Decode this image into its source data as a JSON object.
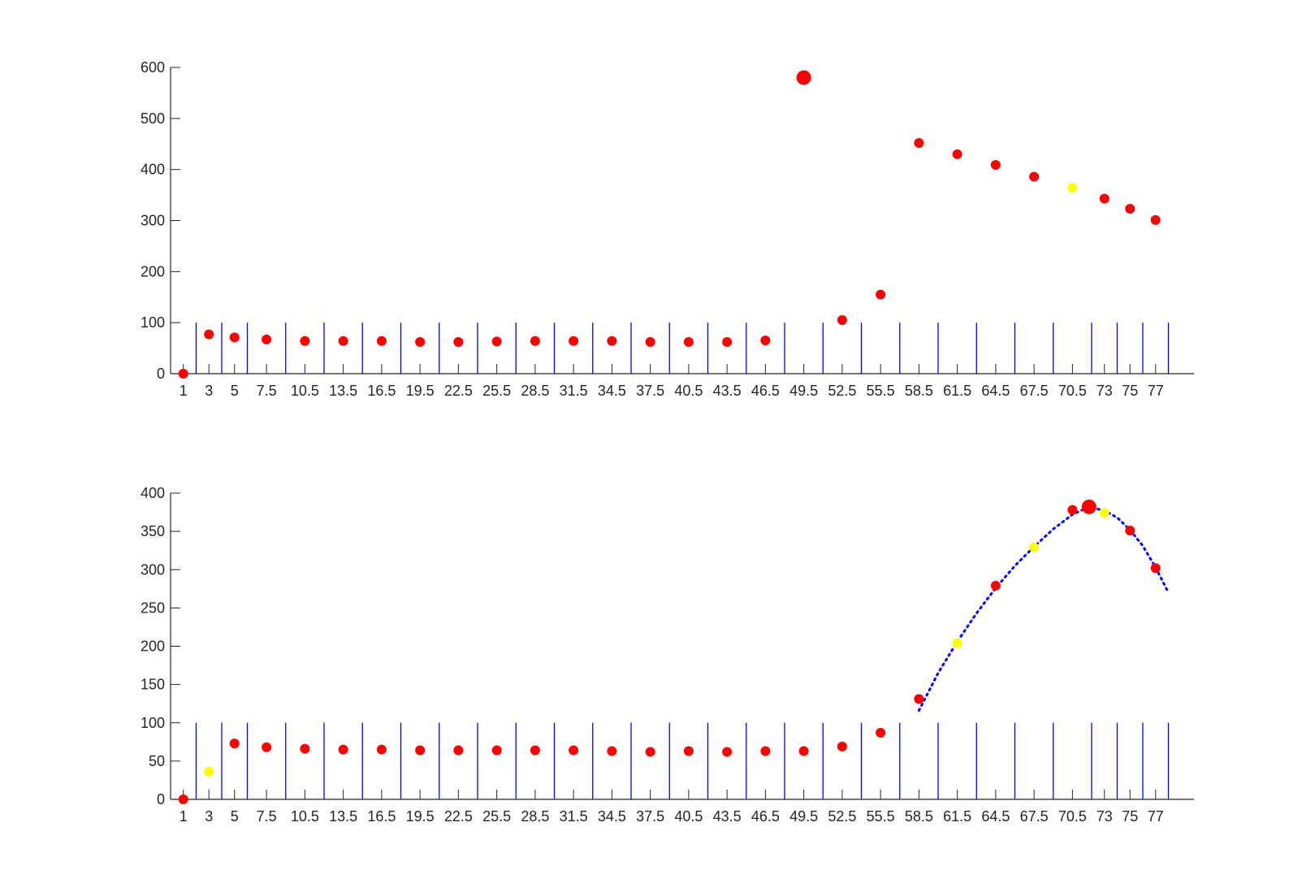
{
  "chart_data": [
    {
      "type": "scatter",
      "ylim": [
        0,
        600
      ],
      "yticks": [
        0,
        100,
        200,
        300,
        400,
        500,
        600
      ],
      "x_tick_labels": [
        "1",
        "3",
        "5",
        "7.5",
        "10.5",
        "13.5",
        "16.5",
        "19.5",
        "22.5",
        "25.5",
        "28.5",
        "31.5",
        "34.5",
        "37.5",
        "40.5",
        "43.5",
        "46.5",
        "49.5",
        "52.5",
        "55.5",
        "58.5",
        "61.5",
        "64.5",
        "67.5",
        "70.5",
        "73",
        "75",
        "77"
      ],
      "bin_edges": [
        2,
        4,
        6,
        9,
        12,
        15,
        18,
        21,
        24,
        27,
        30,
        33,
        36,
        39,
        42,
        45,
        48,
        51,
        54,
        57,
        60,
        63,
        66,
        69,
        72,
        74,
        76,
        78
      ],
      "bin_line_height": 100,
      "points": [
        {
          "x": 1,
          "y": 0,
          "color": "red"
        },
        {
          "x": 3,
          "y": 77,
          "color": "red"
        },
        {
          "x": 5,
          "y": 71,
          "color": "red"
        },
        {
          "x": 7.5,
          "y": 67,
          "color": "red"
        },
        {
          "x": 10.5,
          "y": 64,
          "color": "red"
        },
        {
          "x": 13.5,
          "y": 64,
          "color": "red"
        },
        {
          "x": 16.5,
          "y": 64,
          "color": "red"
        },
        {
          "x": 19.5,
          "y": 62,
          "color": "red"
        },
        {
          "x": 22.5,
          "y": 62,
          "color": "red"
        },
        {
          "x": 25.5,
          "y": 63,
          "color": "red"
        },
        {
          "x": 28.5,
          "y": 64,
          "color": "red"
        },
        {
          "x": 31.5,
          "y": 64,
          "color": "red"
        },
        {
          "x": 34.5,
          "y": 64,
          "color": "red"
        },
        {
          "x": 37.5,
          "y": 62,
          "color": "red"
        },
        {
          "x": 40.5,
          "y": 62,
          "color": "red"
        },
        {
          "x": 43.5,
          "y": 62,
          "color": "red"
        },
        {
          "x": 46.5,
          "y": 65,
          "color": "red"
        },
        {
          "x": 49.5,
          "y": 580,
          "color": "red",
          "highlight": true
        },
        {
          "x": 52.5,
          "y": 105,
          "color": "red"
        },
        {
          "x": 55.5,
          "y": 155,
          "color": "red"
        },
        {
          "x": 58.5,
          "y": 452,
          "color": "red"
        },
        {
          "x": 61.5,
          "y": 430,
          "color": "red"
        },
        {
          "x": 64.5,
          "y": 409,
          "color": "red"
        },
        {
          "x": 67.5,
          "y": 386,
          "color": "red"
        },
        {
          "x": 70.5,
          "y": 364,
          "color": "yellow"
        },
        {
          "x": 73,
          "y": 343,
          "color": "red"
        },
        {
          "x": 75,
          "y": 323,
          "color": "red"
        },
        {
          "x": 77,
          "y": 301,
          "color": "red"
        }
      ]
    },
    {
      "type": "scatter",
      "ylim": [
        0,
        400
      ],
      "yticks": [
        0,
        50,
        100,
        150,
        200,
        250,
        300,
        350,
        400
      ],
      "x_tick_labels": [
        "1",
        "3",
        "5",
        "7.5",
        "10.5",
        "13.5",
        "16.5",
        "19.5",
        "22.5",
        "25.5",
        "28.5",
        "31.5",
        "34.5",
        "37.5",
        "40.5",
        "43.5",
        "46.5",
        "49.5",
        "52.5",
        "55.5",
        "58.5",
        "61.5",
        "64.5",
        "67.5",
        "70.5",
        "73",
        "75",
        "77"
      ],
      "bin_edges": [
        2,
        4,
        6,
        9,
        12,
        15,
        18,
        21,
        24,
        27,
        30,
        33,
        36,
        39,
        42,
        45,
        48,
        51,
        54,
        57,
        60,
        63,
        66,
        69,
        72,
        74,
        76,
        78
      ],
      "bin_line_height": 100,
      "points": [
        {
          "x": 1,
          "y": 0,
          "color": "red"
        },
        {
          "x": 3,
          "y": 36,
          "color": "yellow"
        },
        {
          "x": 5,
          "y": 73,
          "color": "red"
        },
        {
          "x": 7.5,
          "y": 68,
          "color": "red"
        },
        {
          "x": 10.5,
          "y": 66,
          "color": "red"
        },
        {
          "x": 13.5,
          "y": 65,
          "color": "red"
        },
        {
          "x": 16.5,
          "y": 65,
          "color": "red"
        },
        {
          "x": 19.5,
          "y": 64,
          "color": "red"
        },
        {
          "x": 22.5,
          "y": 64,
          "color": "red"
        },
        {
          "x": 25.5,
          "y": 64,
          "color": "red"
        },
        {
          "x": 28.5,
          "y": 64,
          "color": "red"
        },
        {
          "x": 31.5,
          "y": 64,
          "color": "red"
        },
        {
          "x": 34.5,
          "y": 63,
          "color": "red"
        },
        {
          "x": 37.5,
          "y": 62,
          "color": "red"
        },
        {
          "x": 40.5,
          "y": 63,
          "color": "red"
        },
        {
          "x": 43.5,
          "y": 62,
          "color": "red"
        },
        {
          "x": 46.5,
          "y": 63,
          "color": "red"
        },
        {
          "x": 49.5,
          "y": 63,
          "color": "red"
        },
        {
          "x": 52.5,
          "y": 69,
          "color": "red"
        },
        {
          "x": 55.5,
          "y": 87,
          "color": "red"
        },
        {
          "x": 58.5,
          "y": 131,
          "color": "red"
        },
        {
          "x": 61.5,
          "y": 204,
          "color": "yellow"
        },
        {
          "x": 64.5,
          "y": 279,
          "color": "red"
        },
        {
          "x": 67.5,
          "y": 329,
          "color": "yellow"
        },
        {
          "x": 70.5,
          "y": 378,
          "color": "red"
        },
        {
          "x": 71.8,
          "y": 382,
          "color": "red",
          "highlight": true
        },
        {
          "x": 73,
          "y": 374,
          "color": "yellow"
        },
        {
          "x": 75,
          "y": 351,
          "color": "red"
        },
        {
          "x": 77,
          "y": 302,
          "color": "red"
        }
      ],
      "fit_curve": [
        {
          "x": 58.5,
          "y": 116
        },
        {
          "x": 60,
          "y": 165
        },
        {
          "x": 61.5,
          "y": 206
        },
        {
          "x": 63,
          "y": 243
        },
        {
          "x": 64.5,
          "y": 276
        },
        {
          "x": 66,
          "y": 305
        },
        {
          "x": 67.5,
          "y": 330
        },
        {
          "x": 69,
          "y": 353
        },
        {
          "x": 70.5,
          "y": 372
        },
        {
          "x": 71.8,
          "y": 382
        },
        {
          "x": 73,
          "y": 377
        },
        {
          "x": 74,
          "y": 368
        },
        {
          "x": 75,
          "y": 352
        },
        {
          "x": 76,
          "y": 331
        },
        {
          "x": 77,
          "y": 303
        },
        {
          "x": 78,
          "y": 270
        }
      ]
    }
  ],
  "colors": {
    "axis": "#262626",
    "bin_lines": "#0000ff",
    "fit_curve": "#0000ff",
    "red": "#ff0000",
    "yellow": "#ffff00"
  }
}
